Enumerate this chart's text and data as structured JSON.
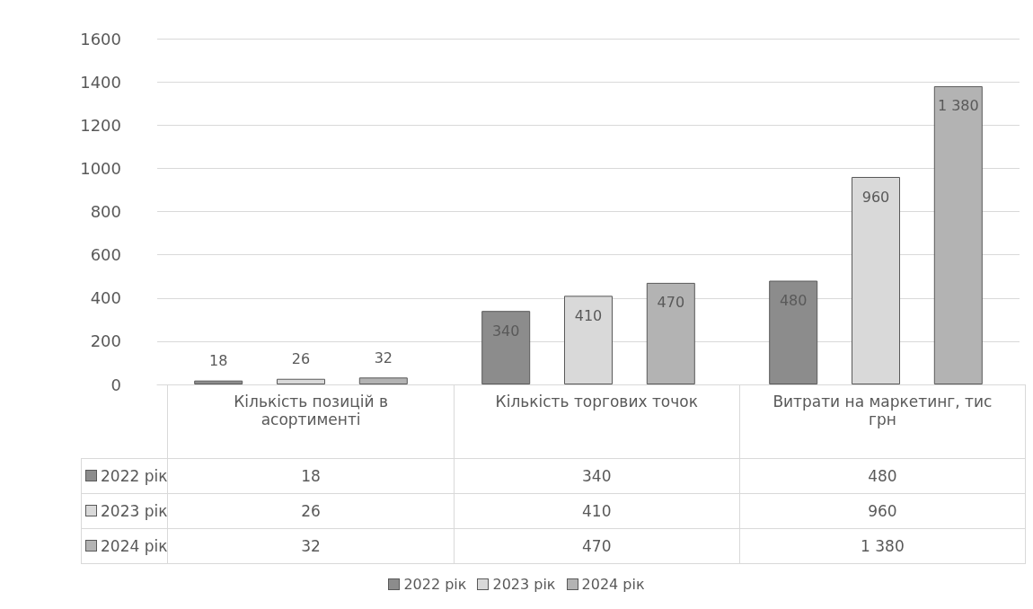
{
  "chart_data": {
    "type": "bar",
    "categories": [
      "Кількість позицій в асортименті",
      "Кількість торгових точок",
      "Витрати на маркетинг, тис грн"
    ],
    "series": [
      {
        "name": "2022 рік",
        "color": "#8c8c8c",
        "values": [
          18,
          340,
          480
        ],
        "value_labels": [
          "18",
          "340",
          "480"
        ]
      },
      {
        "name": "2023 рік",
        "color": "#d9d9d9",
        "values": [
          26,
          410,
          960
        ],
        "value_labels": [
          "26",
          "410",
          "960"
        ]
      },
      {
        "name": "2024 рік",
        "color": "#b3b3b3",
        "values": [
          32,
          470,
          1380
        ],
        "value_labels": [
          "32",
          "470",
          "1 380"
        ]
      }
    ],
    "ylim": [
      0,
      1600
    ],
    "yticks": [
      0,
      200,
      400,
      600,
      800,
      1000,
      1200,
      1400,
      1600
    ],
    "grid": true,
    "legend": "bottom"
  }
}
